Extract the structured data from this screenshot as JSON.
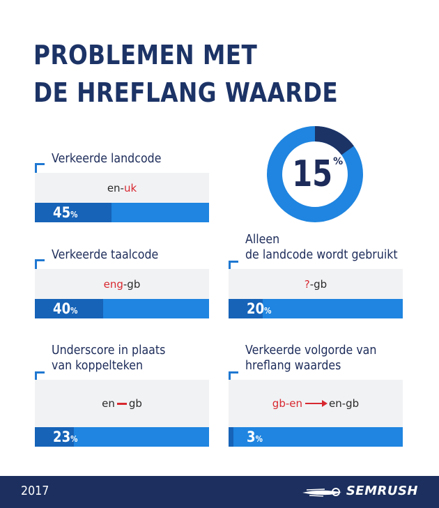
{
  "title": {
    "line1": "PROBLEMEN MET",
    "line2": "DE HREFLANG WAARDE"
  },
  "donut": {
    "value": "15",
    "sign": "%",
    "fraction": 0.15,
    "colors": {
      "ring": "#1f85e0",
      "segment": "#1c3366"
    }
  },
  "cards": [
    {
      "label": "Verkeerde landcode",
      "code_black": "en-",
      "code_red": "uk",
      "pct": "45",
      "sign": "%",
      "fraction": 0.45
    },
    {
      "label": "Verkeerde taalcode",
      "code_red": "eng",
      "code_black": "-gb",
      "pct": "40",
      "sign": "%",
      "fraction": 0.4
    },
    {
      "label1": "Alleen",
      "label2": "de landcode wordt gebruikt",
      "code_red": "?",
      "code_black": "-gb",
      "pct": "20",
      "sign": "%",
      "fraction": 0.2
    },
    {
      "label1": "Underscore in plaats",
      "label2": "van koppelteken",
      "code_left": "en",
      "code_right": "gb",
      "pct": "23",
      "sign": "%",
      "fraction": 0.23
    },
    {
      "label1": "Verkeerde volgorde van",
      "label2": "hreflang waardes",
      "code_red": "gb-en",
      "code_black": "en-gb",
      "pct": "3",
      "sign": "%",
      "fraction": 0.03
    }
  ],
  "footer": {
    "year": "2017",
    "brand": "SEMRUSH",
    "brand_icon": "fireball-icon"
  },
  "colors": {
    "navy": "#1c3366",
    "blue": "#1f85e0",
    "dark_fill": "#1663b8",
    "red": "#d7282f",
    "footer_bg": "#1c2f5e"
  }
}
